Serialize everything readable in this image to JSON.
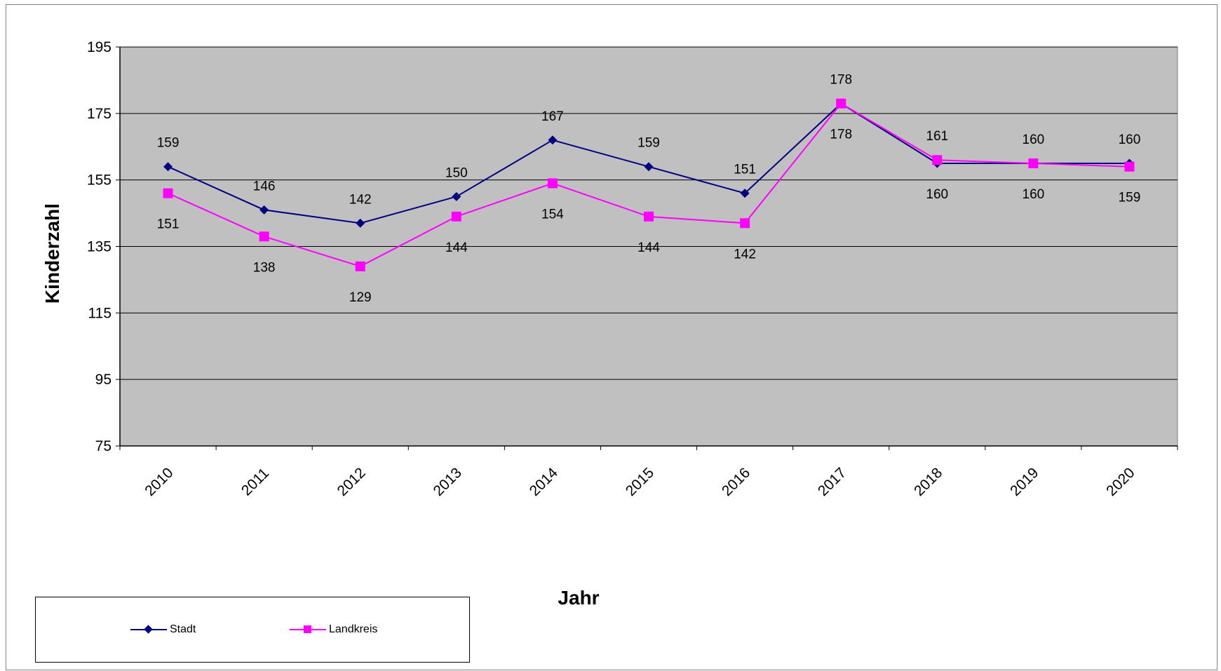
{
  "chart_data": {
    "type": "line",
    "title": "",
    "xlabel": "Jahr",
    "ylabel": "Kinderzahl",
    "categories": [
      "2010",
      "2011",
      "2012",
      "2013",
      "2014",
      "2015",
      "2016",
      "2017",
      "2018",
      "2019",
      "2020"
    ],
    "ylim": [
      75,
      195
    ],
    "yticks": [
      75,
      95,
      115,
      135,
      155,
      175,
      195
    ],
    "grid": "horizontal",
    "plot_background": "#c0c0c0",
    "legend_position": "bottom-left",
    "series": [
      {
        "name": "Stadt",
        "color": "#000080",
        "marker": "diamond",
        "values": [
          159,
          146,
          142,
          150,
          167,
          159,
          151,
          178,
          160,
          160,
          160
        ],
        "labels": [
          "159",
          "146",
          "142",
          "150",
          "167",
          "159",
          "151",
          "178",
          "160",
          "160",
          "160"
        ]
      },
      {
        "name": "Landkreis",
        "color": "#ff00ff",
        "marker": "square",
        "values": [
          151,
          138,
          129,
          144,
          154,
          144,
          142,
          178,
          161,
          160,
          159
        ],
        "labels": [
          "151",
          "138",
          "129",
          "144",
          "154",
          "144",
          "142",
          "178",
          "161",
          "160",
          "159"
        ]
      }
    ]
  }
}
